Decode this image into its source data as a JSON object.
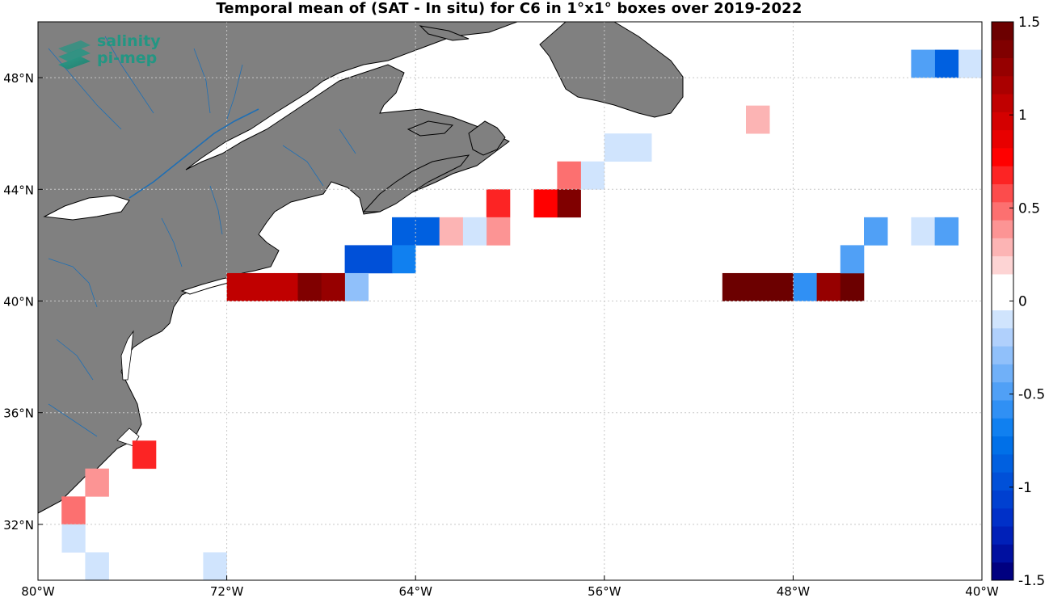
{
  "title": "Temporal mean of (SAT - In situ) for C6 in 1°x1° boxes over 2019-2022",
  "logo": {
    "line1": "salinity",
    "line2": "pi-mep",
    "icon": "layered-map-icon"
  },
  "chart_data": {
    "type": "heatmap",
    "lon_range": [
      -80,
      -40
    ],
    "lat_range": [
      30,
      50
    ],
    "x_ticks": [
      "80°W",
      "72°W",
      "64°W",
      "56°W",
      "48°W",
      "40°W"
    ],
    "y_ticks": [
      "32°N",
      "36°N",
      "40°N",
      "44°N",
      "48°N"
    ],
    "grid": true,
    "land_color": "#808080",
    "colorbar": {
      "min": -1.5,
      "max": 1.5,
      "tick_labels": [
        "1.5",
        "1",
        "0.5",
        "0",
        "-0.5",
        "-1",
        "-1.5"
      ],
      "colors": [
        "#000080",
        "#0010a0",
        "#0020b8",
        "#0030c8",
        "#0040d0",
        "#0050d8",
        "#0060e0",
        "#0070e8",
        "#1080f0",
        "#3090f4",
        "#50a0f6",
        "#70b0f8",
        "#90c0fa",
        "#b0d0fc",
        "#d0e4fd",
        "#ffffff",
        "#ffffff",
        "#fdd4d4",
        "#fcb4b4",
        "#fc9494",
        "#fc7070",
        "#fc4c4c",
        "#fc2424",
        "#ff0000",
        "#e80000",
        "#d40000",
        "#c00000",
        "#aa0000",
        "#960000",
        "#800000",
        "#6c0000"
      ]
    },
    "cells": [
      {
        "lon": -40.5,
        "lat": 48.5,
        "value": -0.1
      },
      {
        "lon": -41.5,
        "lat": 48.5,
        "value": -0.9
      },
      {
        "lon": -42.5,
        "lat": 48.5,
        "value": -0.5
      },
      {
        "lon": -49.5,
        "lat": 46.5,
        "value": 0.3
      },
      {
        "lon": -54.5,
        "lat": 45.5,
        "value": -0.1
      },
      {
        "lon": -55.5,
        "lat": 45.5,
        "value": -0.1
      },
      {
        "lon": -56.5,
        "lat": 44.5,
        "value": -0.1
      },
      {
        "lon": -57.5,
        "lat": 44.5,
        "value": 0.5
      },
      {
        "lon": -57.5,
        "lat": 43.5,
        "value": 1.35
      },
      {
        "lon": -58.5,
        "lat": 43.5,
        "value": 0.8
      },
      {
        "lon": -59.5,
        "lat": 43.5,
        "value": 0.1
      },
      {
        "lon": -60.5,
        "lat": 43.5,
        "value": 0.65
      },
      {
        "lon": -60.5,
        "lat": 42.5,
        "value": 0.4
      },
      {
        "lon": -61.5,
        "lat": 42.5,
        "value": -0.1
      },
      {
        "lon": -62.5,
        "lat": 42.5,
        "value": 0.25
      },
      {
        "lon": -63.5,
        "lat": 42.5,
        "value": -0.85
      },
      {
        "lon": -64.5,
        "lat": 42.5,
        "value": -0.85
      },
      {
        "lon": -64.5,
        "lat": 41.5,
        "value": -0.7
      },
      {
        "lon": -65.5,
        "lat": 41.5,
        "value": -1.0
      },
      {
        "lon": -66.5,
        "lat": 41.5,
        "value": -1.0
      },
      {
        "lon": -66.5,
        "lat": 40.5,
        "value": -0.25
      },
      {
        "lon": -67.5,
        "lat": 40.5,
        "value": 1.3
      },
      {
        "lon": -68.5,
        "lat": 40.5,
        "value": 1.4
      },
      {
        "lon": -69.5,
        "lat": 40.5,
        "value": 1.05
      },
      {
        "lon": -70.5,
        "lat": 40.5,
        "value": 1.05
      },
      {
        "lon": -71.5,
        "lat": 40.5,
        "value": 1.05
      },
      {
        "lon": -47.5,
        "lat": 40.5,
        "value": -0.6
      },
      {
        "lon": -46.5,
        "lat": 40.5,
        "value": 1.3
      },
      {
        "lon": -45.5,
        "lat": 40.5,
        "value": 1.45
      },
      {
        "lon": -48.5,
        "lat": 40.5,
        "value": 1.45
      },
      {
        "lon": -49.5,
        "lat": 40.5,
        "value": 1.45
      },
      {
        "lon": -50.5,
        "lat": 40.5,
        "value": 1.45
      },
      {
        "lon": -45.5,
        "lat": 41.5,
        "value": -0.45
      },
      {
        "lon": -44.5,
        "lat": 42.5,
        "value": -0.45
      },
      {
        "lon": -42.5,
        "lat": 42.5,
        "value": -0.1
      },
      {
        "lon": -41.5,
        "lat": 42.5,
        "value": -0.5
      },
      {
        "lon": -40.5,
        "lat": 43.5,
        "value": 0.1
      },
      {
        "lon": -75.5,
        "lat": 34.5,
        "value": 0.65
      },
      {
        "lon": -77.5,
        "lat": 33.5,
        "value": 0.4
      },
      {
        "lon": -78.5,
        "lat": 32.5,
        "value": 0.45
      },
      {
        "lon": -78.5,
        "lat": 31.5,
        "value": -0.1
      },
      {
        "lon": -79.5,
        "lat": 31.5,
        "value": 0.1
      },
      {
        "lon": -77.5,
        "lat": 30.5,
        "value": -0.1
      },
      {
        "lon": -72.5,
        "lat": 31.5,
        "value": 0.1
      },
      {
        "lon": -72.5,
        "lat": 30.5,
        "value": -0.1
      }
    ]
  }
}
